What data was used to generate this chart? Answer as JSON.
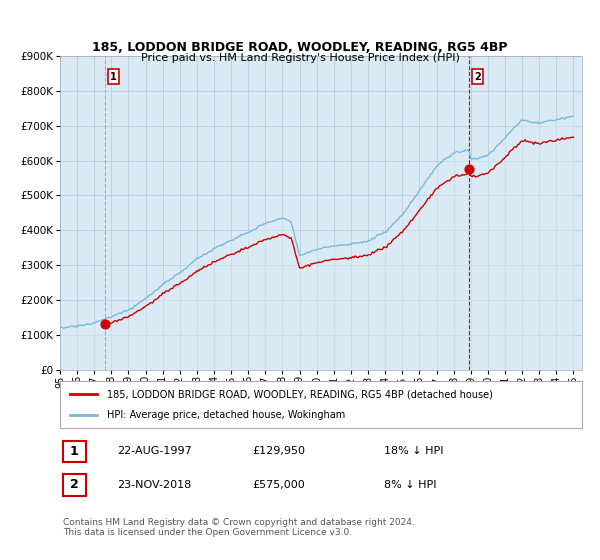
{
  "title": "185, LODDON BRIDGE ROAD, WOODLEY, READING, RG5 4BP",
  "subtitle": "Price paid vs. HM Land Registry's House Price Index (HPI)",
  "ylim": [
    0,
    900000
  ],
  "yticks": [
    0,
    100000,
    200000,
    300000,
    400000,
    500000,
    600000,
    700000,
    800000,
    900000
  ],
  "ytick_labels": [
    "£0",
    "£100K",
    "£200K",
    "£300K",
    "£400K",
    "£500K",
    "£600K",
    "£700K",
    "£800K",
    "£900K"
  ],
  "sale1_date": 1997.64,
  "sale1_price": 129950,
  "sale2_date": 2018.9,
  "sale2_price": 575000,
  "hpi_color": "#7ab8d9",
  "hpi_fill_color": "#daeaf4",
  "sale_line_color": "#cc0000",
  "vline1_color": "#aaaaaa",
  "vline2_color": "#cc0000",
  "background_color": "#ffffff",
  "plot_bg_color": "#daeaf4",
  "grid_color": "#b0c8dc",
  "legend_entry1": "185, LODDON BRIDGE ROAD, WOODLEY, READING, RG5 4BP (detached house)",
  "legend_entry2": "HPI: Average price, detached house, Wokingham",
  "annotation1_num": "1",
  "annotation1_date": "22-AUG-1997",
  "annotation1_price": "£129,950",
  "annotation1_hpi": "18% ↓ HPI",
  "annotation2_num": "2",
  "annotation2_date": "23-NOV-2018",
  "annotation2_price": "£575,000",
  "annotation2_hpi": "8% ↓ HPI",
  "footer": "Contains HM Land Registry data © Crown copyright and database right 2024.\nThis data is licensed under the Open Government Licence v3.0."
}
